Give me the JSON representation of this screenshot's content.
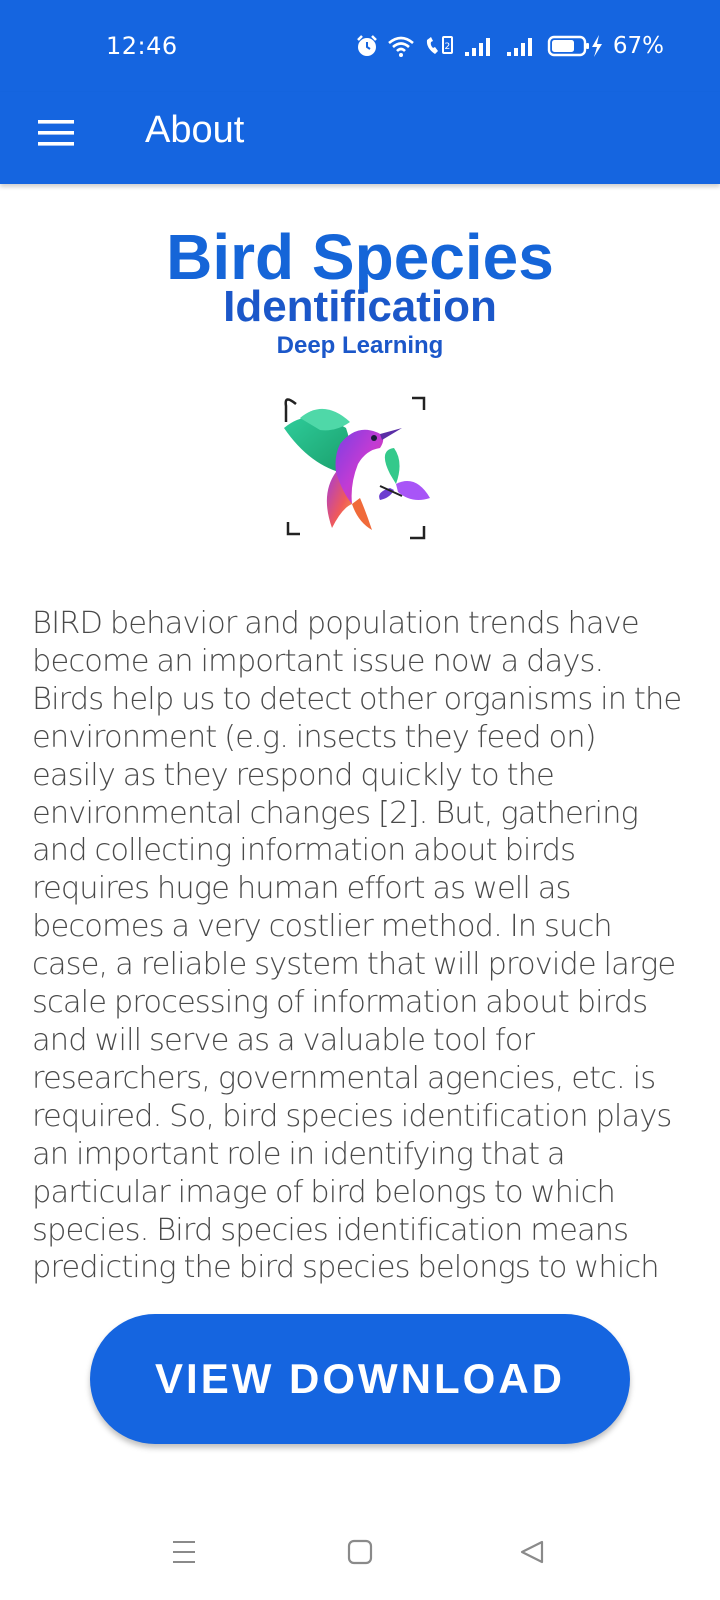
{
  "status_bar": {
    "time": "12:46",
    "battery": "67%",
    "icons": [
      "alarm-icon",
      "wifi-icon",
      "volte-call-icon",
      "signal-icon",
      "signal-icon",
      "battery-charging-icon"
    ]
  },
  "app_bar": {
    "title": "About",
    "menu_icon": "hamburger-menu-icon"
  },
  "logo": {
    "title": "Bird Species",
    "subtitle": "Identification",
    "tagline": "Deep Learning",
    "image_icon": "hummingbird-logo-icon"
  },
  "about": {
    "text": "BIRD behavior and population trends have become an important issue now a days.\nBirds help us to detect other organisms in the environment (e.g. insects they feed on) easily as they respond quickly to the environmental changes [2]. But, gathering and collecting information about birds requires huge human effort as well as becomes a very costlier method. In such case, a reliable system that will provide large scale processing of information about birds and will serve as a valuable tool for researchers, governmental agencies, etc. is required. So, bird species identification plays an important role in identifying that a particular image of bird belongs to which species. Bird species identification means predicting the bird species belongs to which category by using an image."
  },
  "actions": {
    "view_download_label": "VIEW DOWNLOAD"
  },
  "nav_bar": {
    "icons": [
      "recents-icon",
      "home-icon",
      "back-icon"
    ]
  },
  "colors": {
    "primary": "#1565E0",
    "logo_text": "#1565D8",
    "body_text": "#4a4a4a"
  }
}
